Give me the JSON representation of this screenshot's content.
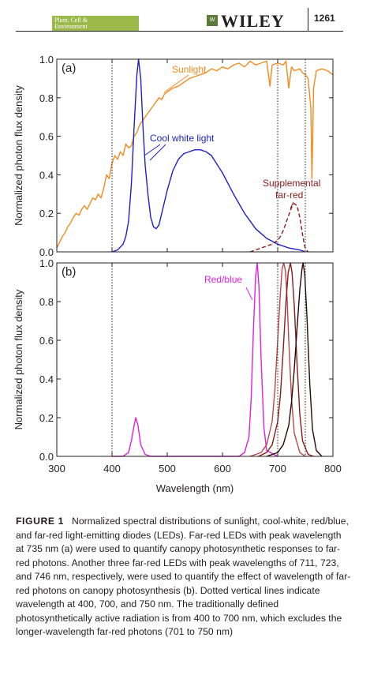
{
  "header": {
    "journal_line1": "Plant, Cell &",
    "journal_line2": "Environment",
    "publisher": "WILEY",
    "page_number": "1261"
  },
  "figure": {
    "xlabel": "Wavelength (nm)",
    "x_ticks": [
      "300",
      "400",
      "500",
      "600",
      "700",
      "800"
    ],
    "y_ticks": [
      "0.0",
      "0.2",
      "0.4",
      "0.6",
      "0.8",
      "1.0"
    ]
  },
  "chart_data": [
    {
      "type": "line",
      "panel_label": "(a)",
      "ylabel": "Normalized photon flux density",
      "xlim": [
        300,
        800
      ],
      "ylim": [
        0,
        1.0
      ],
      "x_ticks": [
        300,
        400,
        500,
        600,
        700,
        800
      ],
      "y_ticks": [
        0.0,
        0.2,
        0.4,
        0.6,
        0.8,
        1.0
      ],
      "vlines": [
        400,
        700,
        750
      ],
      "annotations": [
        "Sunlight",
        "Cool white light",
        "Supplemental",
        "far-red"
      ],
      "series": [
        {
          "name": "Sunlight",
          "color": "#f28a1e",
          "style": "solid",
          "x": [
            300,
            305,
            310,
            315,
            320,
            325,
            330,
            335,
            340,
            345,
            350,
            355,
            360,
            365,
            370,
            375,
            380,
            385,
            390,
            395,
            400,
            405,
            410,
            415,
            420,
            425,
            430,
            435,
            440,
            445,
            450,
            455,
            460,
            465,
            470,
            475,
            480,
            485,
            490,
            495,
            500,
            510,
            520,
            530,
            540,
            550,
            560,
            570,
            580,
            590,
            600,
            610,
            620,
            630,
            640,
            650,
            660,
            670,
            680,
            686,
            690,
            700,
            710,
            715,
            720,
            725,
            730,
            740,
            745,
            750,
            755,
            760,
            762,
            765,
            770,
            780,
            790,
            800
          ],
          "y": [
            0.02,
            0.05,
            0.08,
            0.1,
            0.13,
            0.15,
            0.18,
            0.2,
            0.19,
            0.22,
            0.24,
            0.22,
            0.25,
            0.28,
            0.27,
            0.3,
            0.28,
            0.33,
            0.4,
            0.38,
            0.46,
            0.5,
            0.48,
            0.52,
            0.5,
            0.56,
            0.54,
            0.55,
            0.6,
            0.62,
            0.66,
            0.68,
            0.7,
            0.72,
            0.74,
            0.76,
            0.78,
            0.8,
            0.79,
            0.82,
            0.83,
            0.85,
            0.86,
            0.88,
            0.9,
            0.91,
            0.92,
            0.93,
            0.95,
            0.94,
            0.96,
            0.95,
            0.97,
            0.98,
            0.96,
            0.99,
            0.97,
            0.98,
            0.99,
            0.86,
            0.97,
            0.98,
            0.97,
            0.99,
            0.85,
            0.96,
            0.94,
            0.95,
            0.93,
            0.92,
            0.9,
            0.75,
            0.38,
            0.85,
            0.94,
            0.95,
            0.94,
            0.92
          ]
        },
        {
          "name": "Cool white light",
          "color": "#1f1fcc",
          "style": "solid",
          "x": [
            400,
            410,
            420,
            425,
            430,
            435,
            440,
            445,
            448,
            452,
            456,
            460,
            465,
            470,
            475,
            480,
            485,
            490,
            500,
            510,
            520,
            530,
            540,
            550,
            560,
            570,
            580,
            600,
            620,
            640,
            660,
            680,
            700,
            720,
            740,
            750
          ],
          "y": [
            0.0,
            0.01,
            0.04,
            0.08,
            0.16,
            0.35,
            0.65,
            0.92,
            1.0,
            0.9,
            0.65,
            0.45,
            0.3,
            0.18,
            0.13,
            0.12,
            0.14,
            0.2,
            0.32,
            0.42,
            0.48,
            0.51,
            0.52,
            0.53,
            0.53,
            0.52,
            0.5,
            0.41,
            0.3,
            0.2,
            0.12,
            0.07,
            0.04,
            0.02,
            0.01,
            0.0
          ]
        },
        {
          "name": "Supplemental far-red",
          "color": "#8b1a1a",
          "style": "dashed",
          "x": [
            650,
            660,
            670,
            680,
            690,
            700,
            705,
            710,
            715,
            720,
            725,
            730,
            735,
            740,
            745,
            748,
            750,
            752,
            755
          ],
          "y": [
            0.0,
            0.01,
            0.02,
            0.03,
            0.04,
            0.06,
            0.08,
            0.11,
            0.15,
            0.19,
            0.23,
            0.25,
            0.24,
            0.18,
            0.09,
            0.04,
            0.02,
            0.01,
            0.0
          ]
        }
      ]
    },
    {
      "type": "line",
      "panel_label": "(b)",
      "ylabel": "Normalized photon flux density",
      "xlim": [
        300,
        800
      ],
      "ylim": [
        0,
        1.0
      ],
      "x_ticks": [
        300,
        400,
        500,
        600,
        700,
        800
      ],
      "y_ticks": [
        0.0,
        0.2,
        0.4,
        0.6,
        0.8,
        1.0
      ],
      "vlines": [
        400,
        700,
        750
      ],
      "annotations": [
        "Red/blue"
      ],
      "series": [
        {
          "name": "Red/blue",
          "color": "#e020e0",
          "style": "solid",
          "x": [
            400,
            420,
            430,
            435,
            440,
            443,
            447,
            452,
            460,
            470,
            500,
            550,
            600,
            630,
            640,
            648,
            652,
            656,
            660,
            663,
            666,
            670,
            675,
            680,
            700
          ],
          "y": [
            0.0,
            0.0,
            0.02,
            0.08,
            0.16,
            0.2,
            0.16,
            0.06,
            0.01,
            0.0,
            0.0,
            0.0,
            0.0,
            0.0,
            0.02,
            0.1,
            0.3,
            0.65,
            0.93,
            1.0,
            0.88,
            0.5,
            0.15,
            0.03,
            0.0
          ]
        },
        {
          "name": "Far-red LED 711 nm",
          "color": "#b84848",
          "style": "solid",
          "x": [
            650,
            670,
            680,
            690,
            695,
            700,
            705,
            708,
            711,
            714,
            717,
            720,
            725,
            730,
            740,
            750
          ],
          "y": [
            0.0,
            0.02,
            0.06,
            0.18,
            0.35,
            0.6,
            0.85,
            0.97,
            1.0,
            0.96,
            0.82,
            0.6,
            0.3,
            0.12,
            0.02,
            0.0
          ]
        },
        {
          "name": "Far-red LED 723 nm",
          "color": "#8b1a1a",
          "style": "solid",
          "x": [
            665,
            680,
            690,
            700,
            705,
            710,
            715,
            719,
            723,
            726,
            730,
            735,
            740,
            745,
            755,
            765
          ],
          "y": [
            0.0,
            0.02,
            0.06,
            0.18,
            0.32,
            0.55,
            0.8,
            0.95,
            1.0,
            0.95,
            0.78,
            0.48,
            0.22,
            0.08,
            0.01,
            0.0
          ]
        },
        {
          "name": "Far-red LED 746 nm",
          "color": "#2a0808",
          "style": "solid",
          "x": [
            680,
            700,
            710,
            720,
            725,
            730,
            735,
            740,
            744,
            746,
            749,
            753,
            758,
            763,
            770,
            780
          ],
          "y": [
            0.0,
            0.02,
            0.06,
            0.16,
            0.28,
            0.45,
            0.66,
            0.86,
            0.97,
            1.0,
            0.94,
            0.72,
            0.38,
            0.14,
            0.03,
            0.0
          ]
        }
      ]
    }
  ],
  "caption": {
    "label": "FIGURE 1",
    "text": "Normalized spectral distributions of sunlight, cool-white, red/blue, and far-red light-emitting diodes (LEDs). Far-red LEDs with peak wavelength at 735 nm (a) were used to quantify canopy photosynthetic responses to far-red photons. Another three far-red LEDs with peak wavelengths of 711, 723, and 746 nm, respectively, were used to quantify the effect of wavelength of far-red photons on canopy photosynthesis (b). Dotted vertical lines indicate wavelength at 400, 700, and 750 nm. The traditionally defined photosynthetically active radiation is from 400 to 700 nm, which excludes the longer-wavelength far-red photons (701 to 750 nm)"
  }
}
